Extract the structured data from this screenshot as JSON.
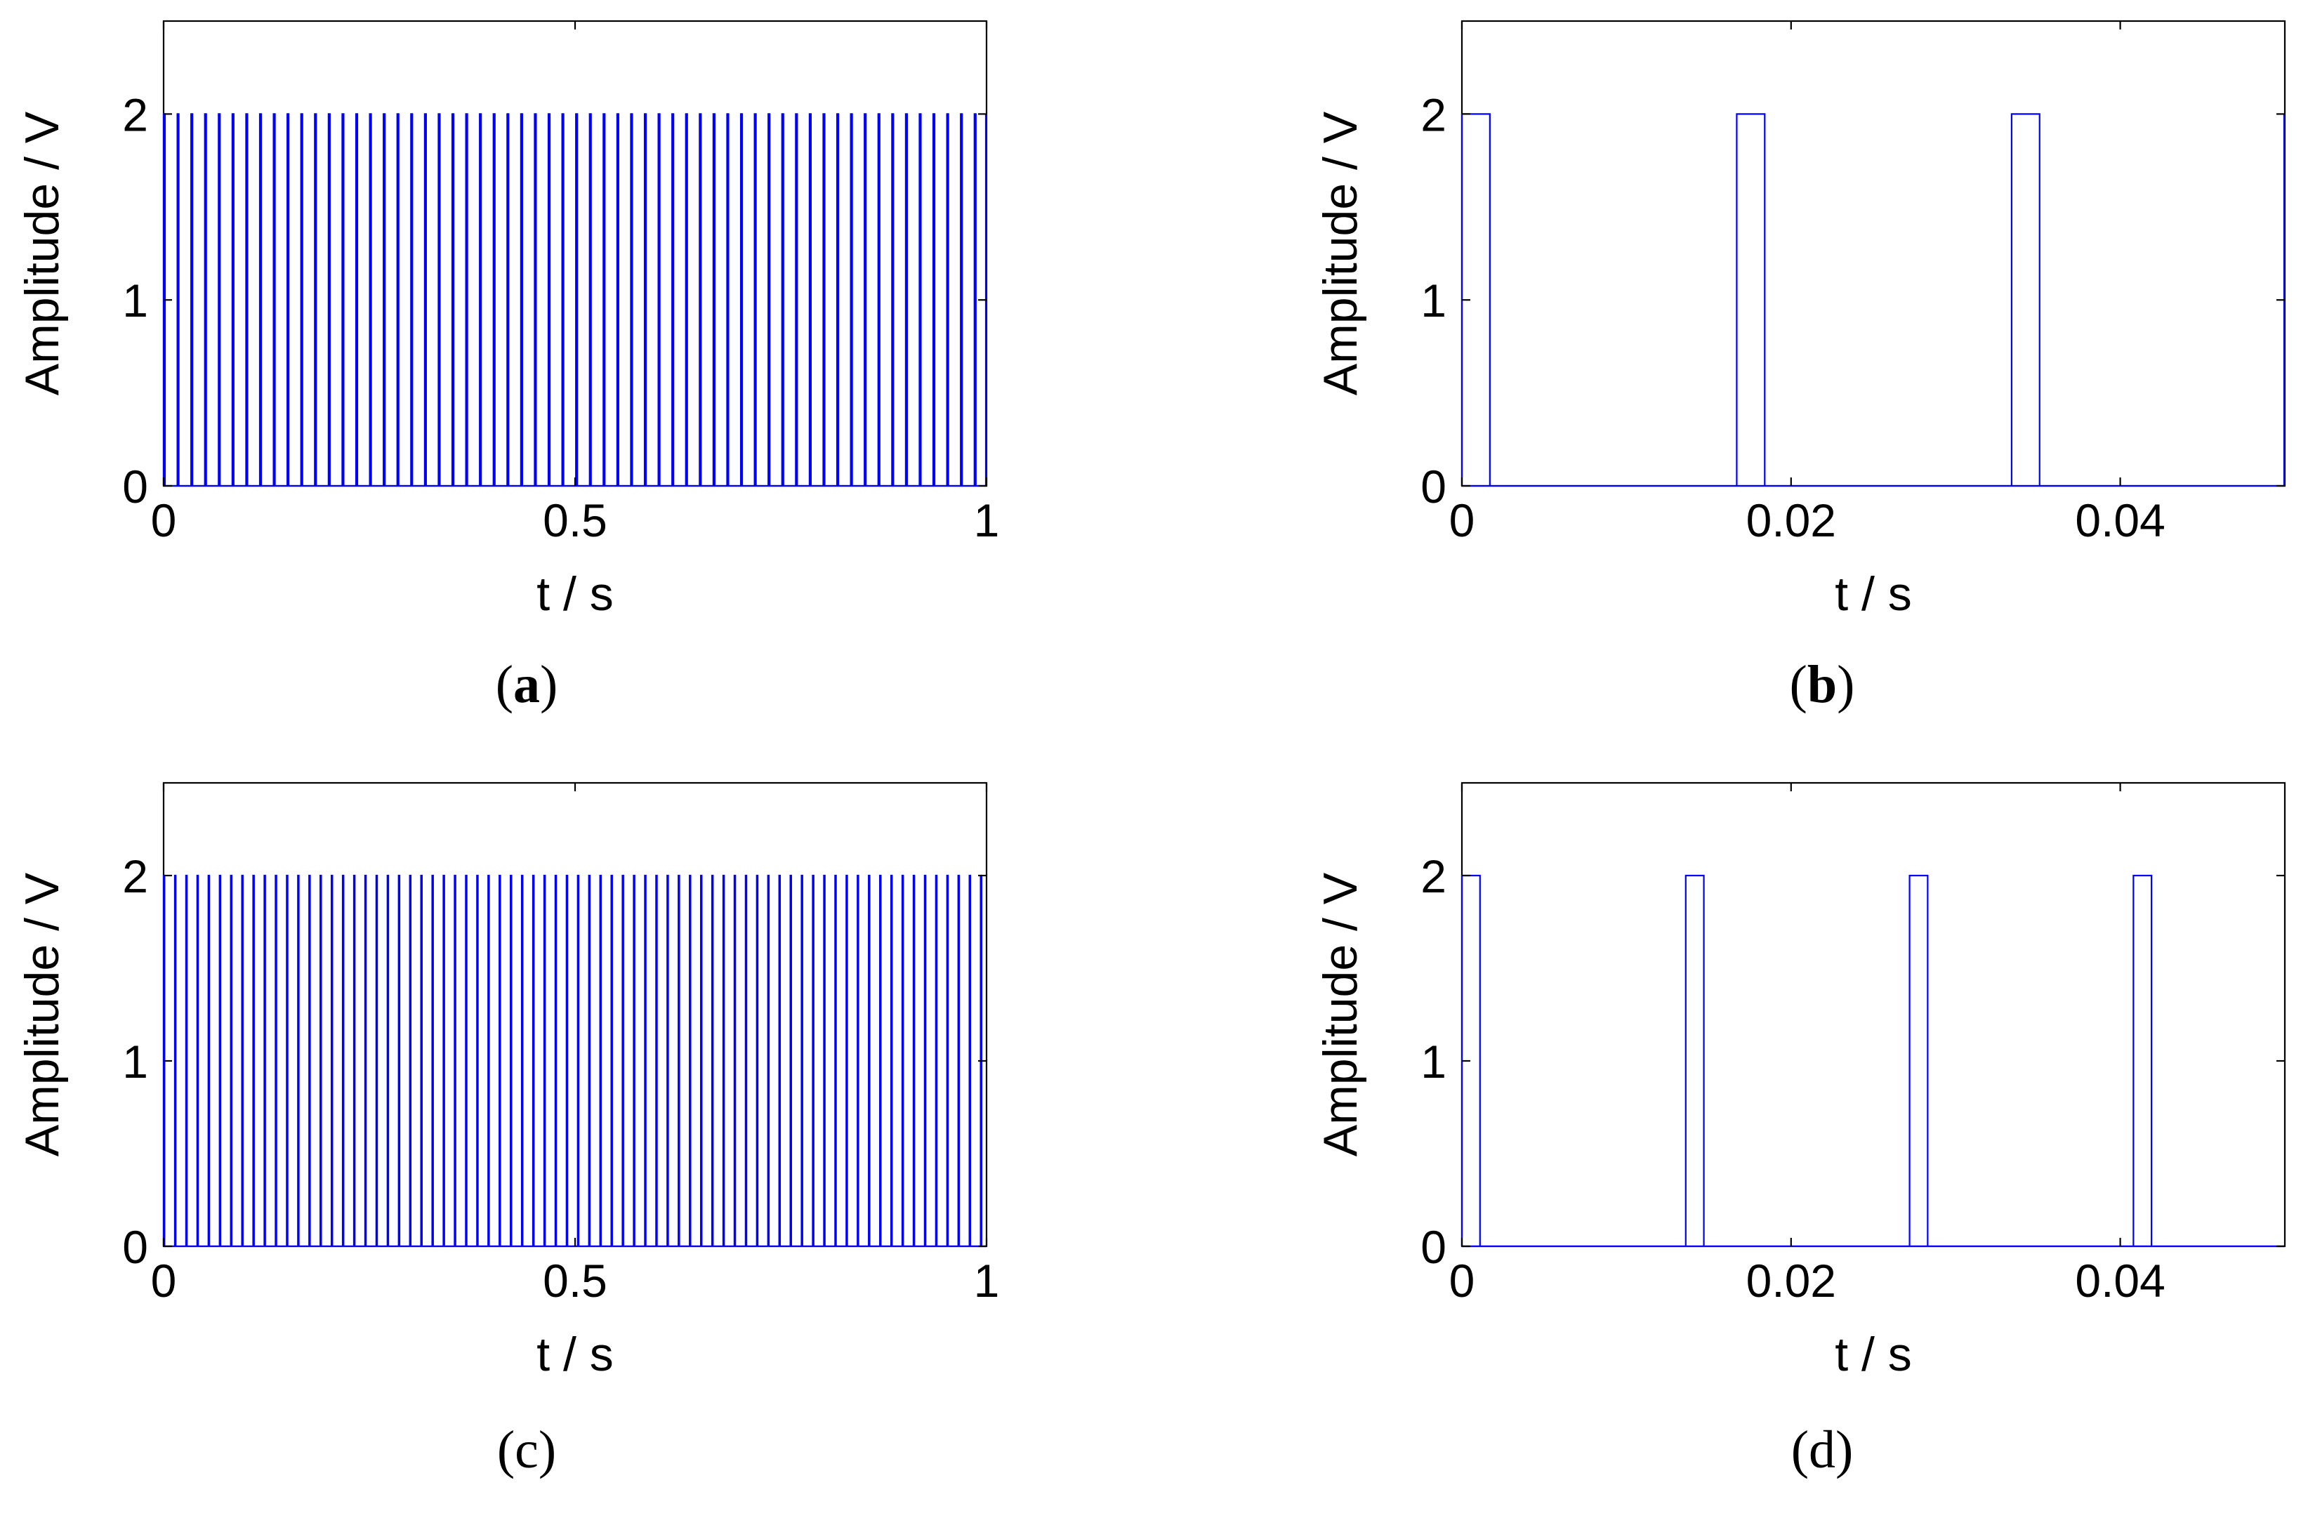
{
  "figure": {
    "background": "#ffffff",
    "line_color": "#0000ff"
  },
  "chart_data": [
    {
      "id": "a",
      "type": "line",
      "subtype": "pulse-train",
      "panel_label": "a",
      "xlabel": "t / s",
      "ylabel": "Amplitude / V",
      "xlim": [
        0,
        1
      ],
      "ylim": [
        0,
        2.5
      ],
      "xticks": [
        0,
        0.5,
        1
      ],
      "xtick_labels": [
        "0",
        "0.5",
        "1"
      ],
      "yticks": [
        0,
        1,
        2
      ],
      "ytick_labels": [
        "0",
        "1",
        "2"
      ],
      "pulse": {
        "low": 0,
        "high": 2,
        "start": 0,
        "period": 0.0167,
        "width": 0.0017,
        "end": 1.0
      }
    },
    {
      "id": "b",
      "type": "line",
      "subtype": "pulse-train",
      "panel_label": "b",
      "xlabel": "t / s",
      "ylabel": "Amplitude / V",
      "xlim": [
        0,
        0.05
      ],
      "ylim": [
        0,
        2.5
      ],
      "xticks": [
        0,
        0.02,
        0.04
      ],
      "xtick_labels": [
        "0",
        "0.02",
        "0.04"
      ],
      "yticks": [
        0,
        1,
        2
      ],
      "ytick_labels": [
        "0",
        "1",
        "2"
      ],
      "pulse": {
        "low": 0,
        "high": 2,
        "start": 0,
        "period": 0.0167,
        "width": 0.0017,
        "end": 0.05
      }
    },
    {
      "id": "c",
      "type": "line",
      "subtype": "pulse-train",
      "panel_label": "c",
      "xlabel": "t / s",
      "ylabel": "Amplitude / V",
      "xlim": [
        0,
        1
      ],
      "ylim": [
        0,
        2.5
      ],
      "xticks": [
        0,
        0.5,
        1
      ],
      "xtick_labels": [
        "0",
        "0.5",
        "1"
      ],
      "yticks": [
        0,
        1,
        2
      ],
      "ytick_labels": [
        "0",
        "1",
        "2"
      ],
      "pulse": {
        "low": 0,
        "high": 2,
        "start": 0,
        "period": 0.0136,
        "width": 0.0011,
        "end": 1.0
      }
    },
    {
      "id": "d",
      "type": "line",
      "subtype": "pulse-train",
      "panel_label": "d",
      "xlabel": "t / s",
      "ylabel": "Amplitude / V",
      "xlim": [
        0,
        0.05
      ],
      "ylim": [
        0,
        2.5
      ],
      "xticks": [
        0,
        0.02,
        0.04
      ],
      "xtick_labels": [
        "0",
        "0.02",
        "0.04"
      ],
      "yticks": [
        0,
        1,
        2
      ],
      "ytick_labels": [
        "0",
        "1",
        "2"
      ],
      "pulse": {
        "low": 0,
        "high": 2,
        "start": 0,
        "period": 0.0136,
        "width": 0.0011,
        "end": 0.05
      }
    }
  ]
}
